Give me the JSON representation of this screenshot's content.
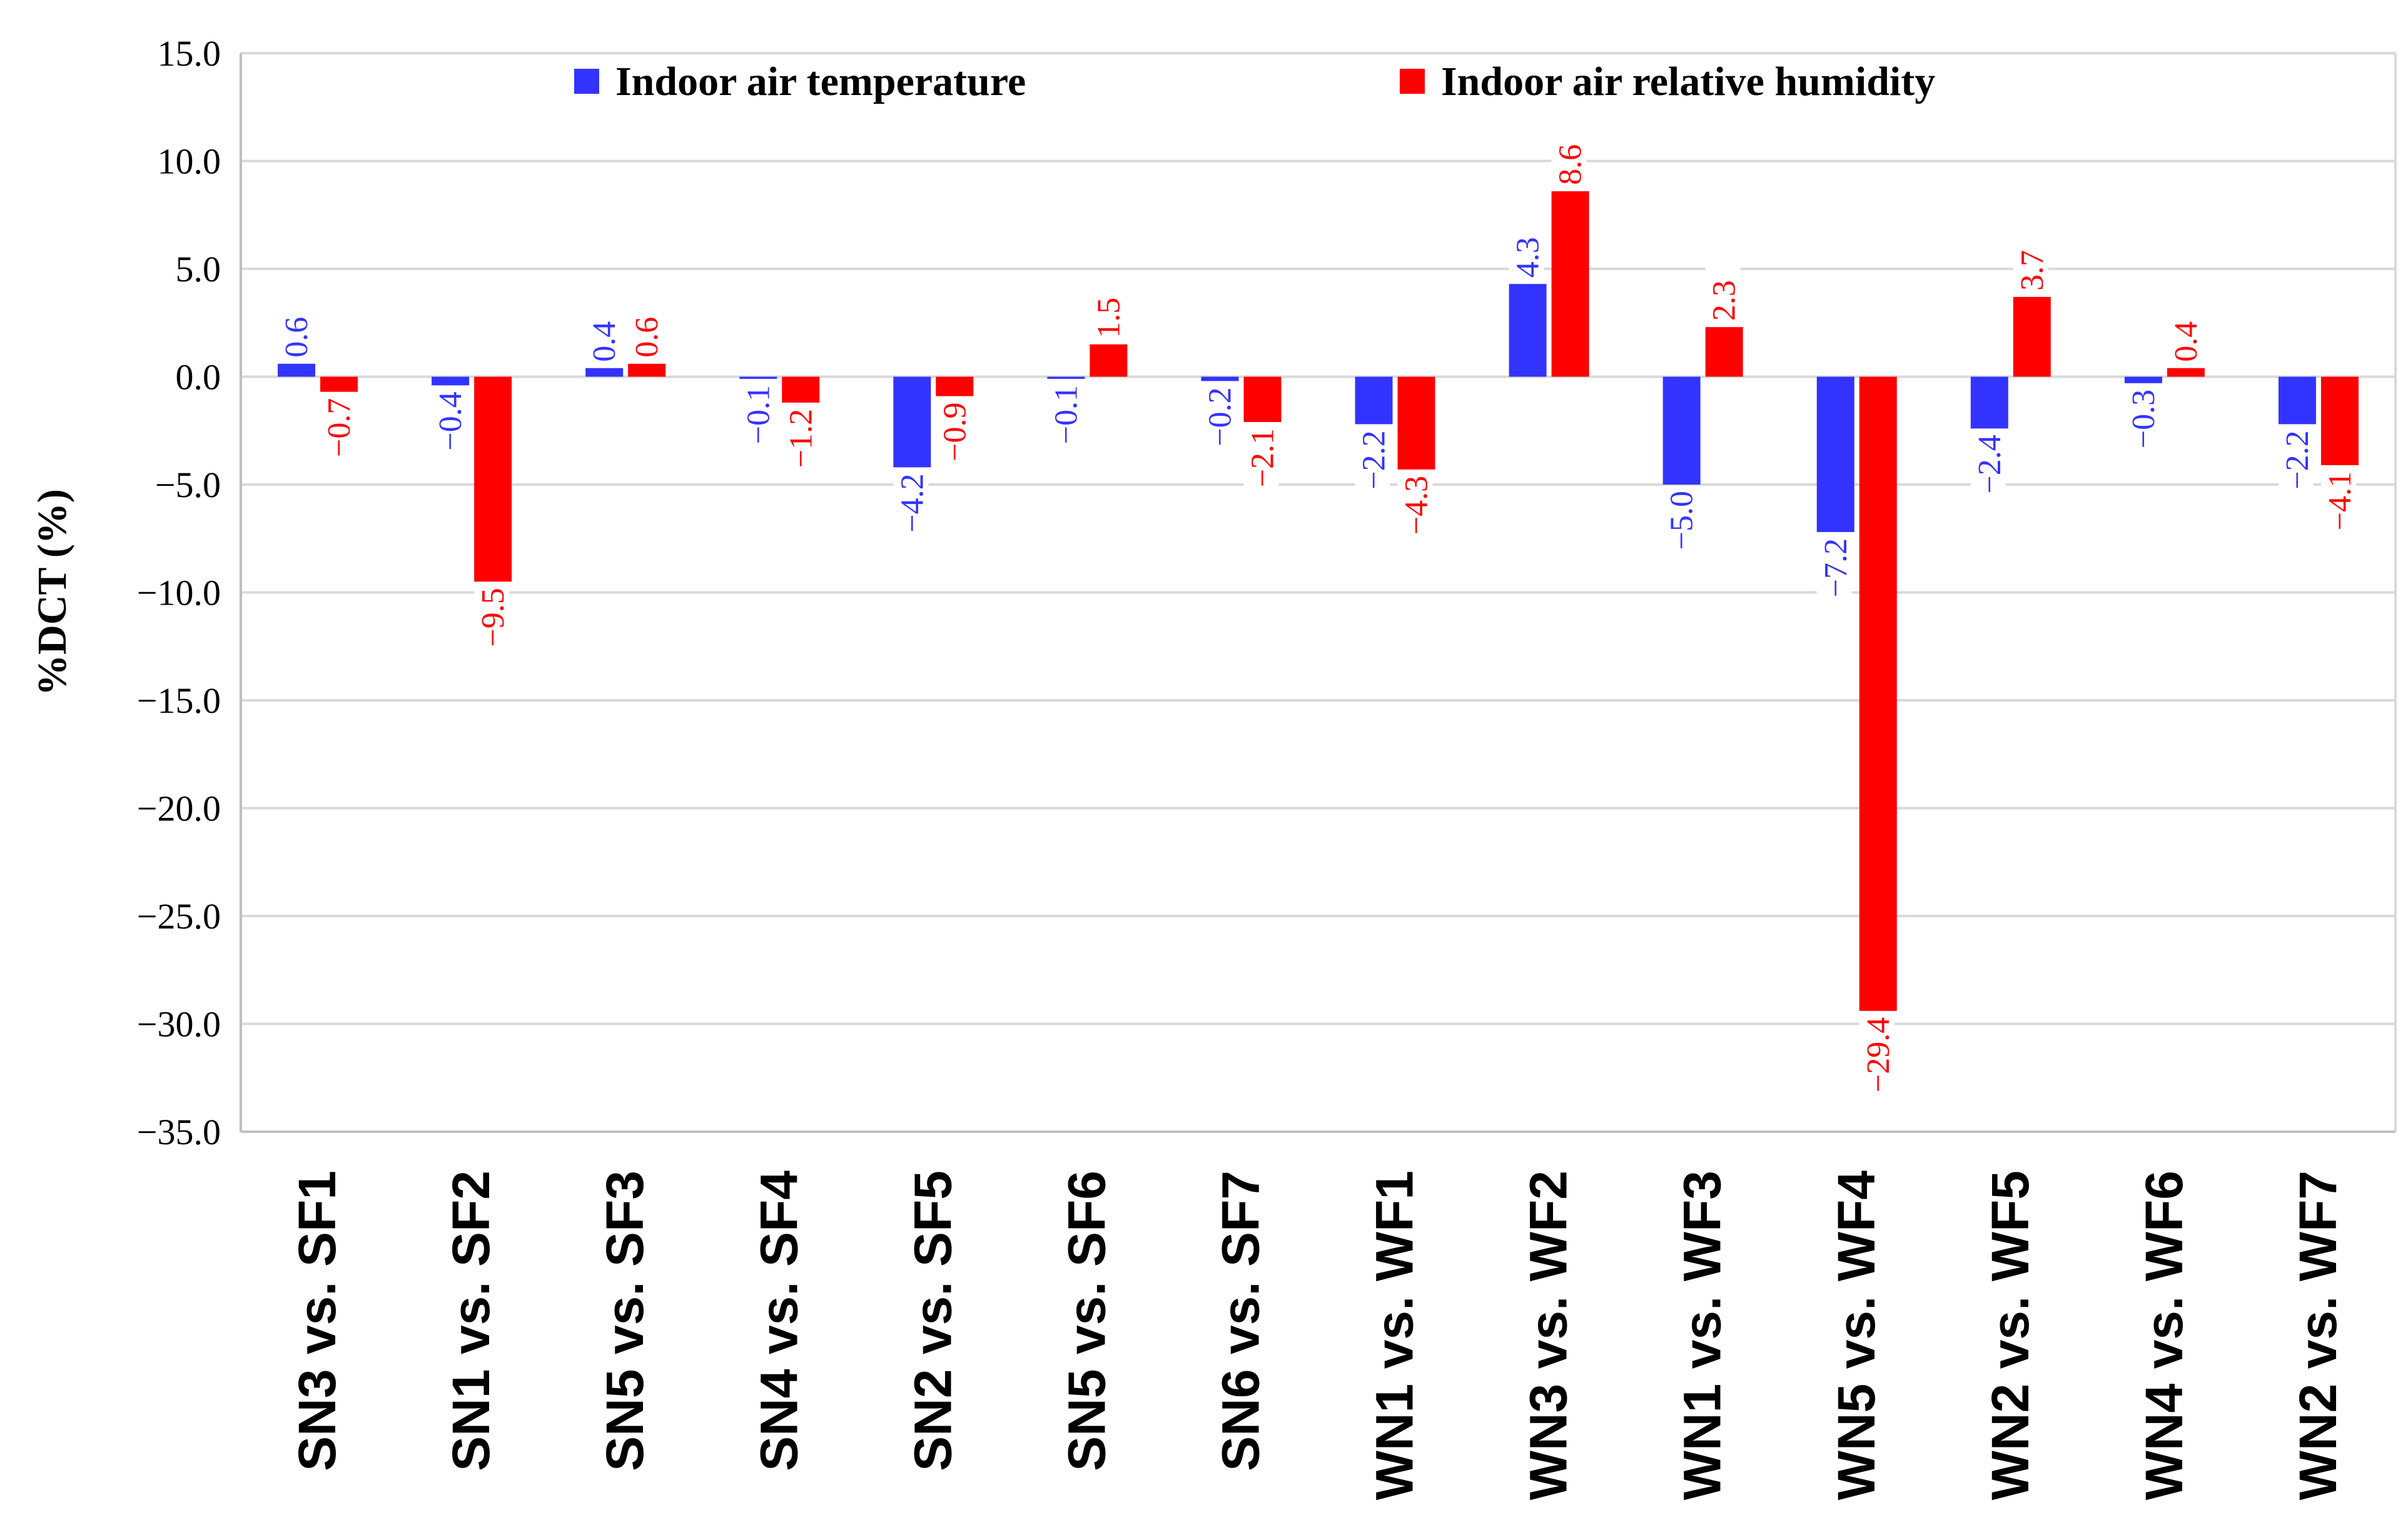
{
  "chart_data": {
    "type": "bar",
    "title": "",
    "xlabel": "",
    "ylabel": "%DCT (%)",
    "ylim": [
      -35,
      15
    ],
    "ytick_step": 5,
    "ytick_labels": [
      "15.0",
      "10.0",
      "5.0",
      "0.0",
      "−5.0",
      "−10.0",
      "−15.0",
      "−20.0",
      "−25.0",
      "−30.0",
      "−35.0"
    ],
    "grid": true,
    "legend_position": "top",
    "categories": [
      "SN3 vs. SF1",
      "SN1 vs. SF2",
      "SN5 vs. SF3",
      "SN4 vs. SF4",
      "SN2 vs. SF5",
      "SN5 vs. SF6",
      "SN6 vs. SF7",
      "WN1 vs. WF1",
      "WN3 vs. WF2",
      "WN1 vs. WF3",
      "WN5 vs. WF4",
      "WN2 vs. WF5",
      "WN4 vs. WF6",
      "WN2 vs. WF7"
    ],
    "series": [
      {
        "name": "Indoor air temperature",
        "color": "#3333ff",
        "values": [
          0.6,
          -0.4,
          0.4,
          -0.1,
          -4.2,
          -0.1,
          -0.2,
          -2.2,
          4.3,
          -5.0,
          -7.2,
          -2.4,
          -0.3,
          -2.2
        ],
        "labels": [
          "0.6",
          "−0.4",
          "0.4",
          "−0.1",
          "−4.2",
          "−0.1",
          "−0.2",
          "−2.2",
          "4.3",
          "−5.0",
          "−7.2",
          "−2.4",
          "−0.3",
          "−2.2"
        ]
      },
      {
        "name": "Indoor air relative humidity",
        "color": "#ff0000",
        "values": [
          -0.7,
          -9.5,
          0.6,
          -1.2,
          -0.9,
          1.5,
          -2.1,
          -4.3,
          8.6,
          2.3,
          -29.4,
          3.7,
          0.4,
          -4.1
        ],
        "labels": [
          "−0.7",
          "−9.5",
          "0.6",
          "−1.2",
          "−0.9",
          "1.5",
          "−2.1",
          "−4.3",
          "8.6",
          "2.3",
          "−29.4",
          "3.7",
          "0.4",
          "−4.1"
        ]
      }
    ]
  }
}
